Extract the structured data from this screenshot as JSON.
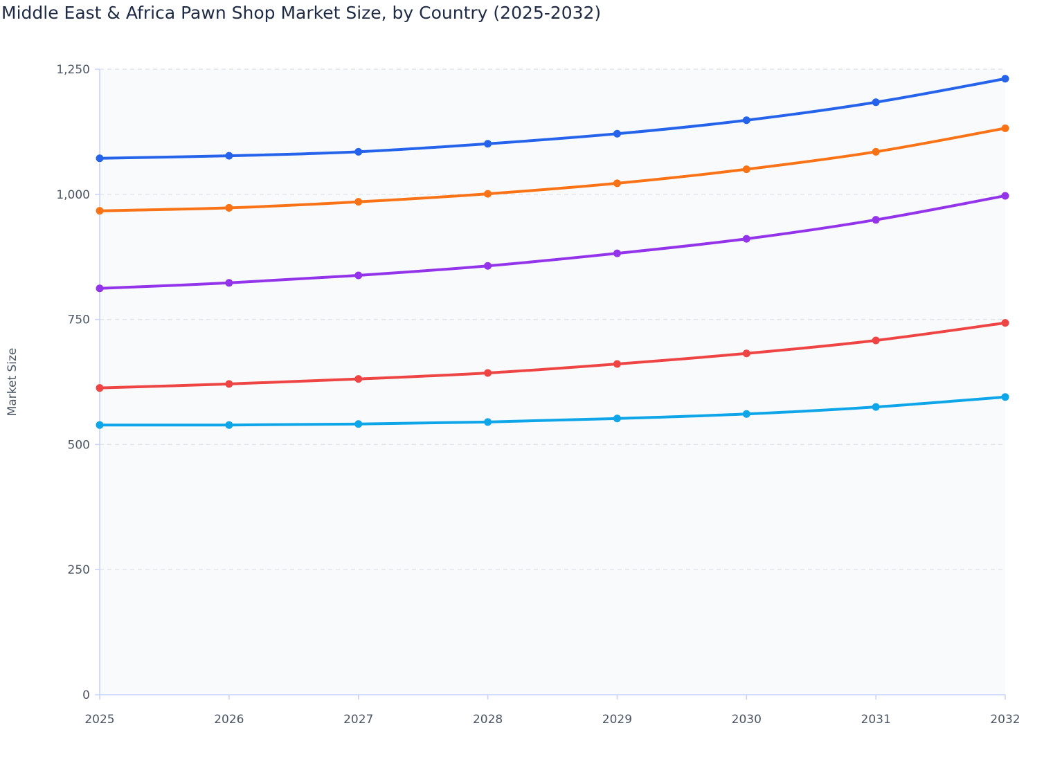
{
  "chart_data": {
    "type": "line",
    "title": "Middle East & Africa Pawn Shop Market Size, by Country (2025-2032)",
    "xlabel": "",
    "ylabel": "Market Size",
    "x": [
      "2025",
      "2026",
      "2027",
      "2028",
      "2029",
      "2030",
      "2031",
      "2032"
    ],
    "ylim": [
      0,
      1250
    ],
    "yticks": [
      0,
      250,
      500,
      750,
      1000,
      1250
    ],
    "ytick_labels": [
      "0",
      "250",
      "500",
      "750",
      "1,000",
      "1,250"
    ],
    "grid": true,
    "legend": "none",
    "series": [
      {
        "color": "#2563eb",
        "values": [
          1072,
          1077,
          1085,
          1101,
          1121,
          1148,
          1184,
          1231
        ]
      },
      {
        "color": "#f97316",
        "values": [
          967,
          973,
          985,
          1001,
          1022,
          1050,
          1085,
          1132
        ]
      },
      {
        "color": "#9333ea",
        "values": [
          812,
          823,
          838,
          857,
          882,
          911,
          949,
          997
        ]
      },
      {
        "color": "#ef4444",
        "values": [
          613,
          621,
          631,
          643,
          661,
          682,
          708,
          743
        ]
      },
      {
        "color": "#0ea5e9",
        "values": [
          539,
          539,
          541,
          545,
          552,
          561,
          575,
          595
        ]
      }
    ]
  }
}
